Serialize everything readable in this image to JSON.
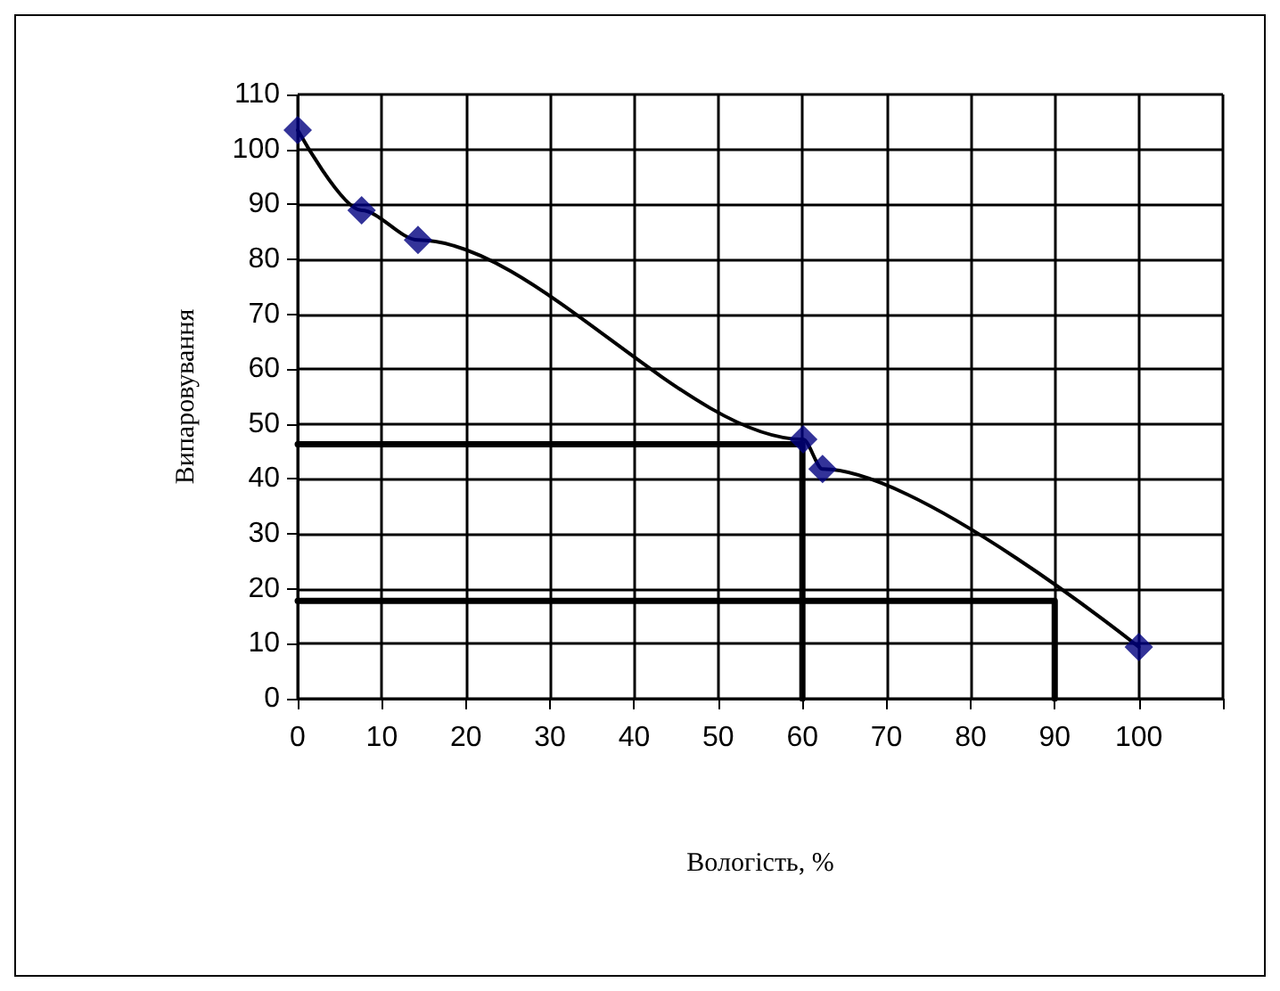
{
  "chart_data": {
    "type": "scatter",
    "xlabel": "Вологість, %",
    "ylabel": "Випаровування",
    "x": [
      0,
      7.6,
      14.3,
      60.1,
      62.4,
      100
    ],
    "series": [
      {
        "type": "line",
        "color": "#000000",
        "marker": "none",
        "x": [
          0,
          7.6,
          14.3,
          60.1,
          62.4,
          100
        ],
        "values": [
          103.5,
          88.9,
          83.5,
          47.2,
          41.8,
          9.4
        ]
      },
      {
        "color": "#000080",
        "marker": "diamond",
        "values": [
          103.5,
          88.9,
          83.5,
          47.2,
          41.8,
          9.4
        ]
      },
      {
        "type": "line",
        "color": "#000000",
        "marker": "none",
        "x": [
          0,
          60,
          60
        ],
        "values": [
          46.3,
          46.3,
          0
        ]
      },
      {
        "type": "line",
        "color": "#000000",
        "marker": "none",
        "x": [
          0,
          90,
          90
        ],
        "values": [
          17.8,
          17.8,
          0
        ]
      }
    ],
    "xlim": [
      0,
      110
    ],
    "xticks": [
      0,
      10,
      20,
      30,
      40,
      50,
      60,
      70,
      80,
      90,
      100,
      {
        "value": 110,
        "label": null
      }
    ],
    "ylim": [
      0,
      110
    ],
    "yticks": [
      0,
      10,
      20,
      30,
      40,
      50,
      60,
      70,
      80,
      90,
      100,
      110
    ],
    "grid": true,
    "line_style": "solid"
  }
}
